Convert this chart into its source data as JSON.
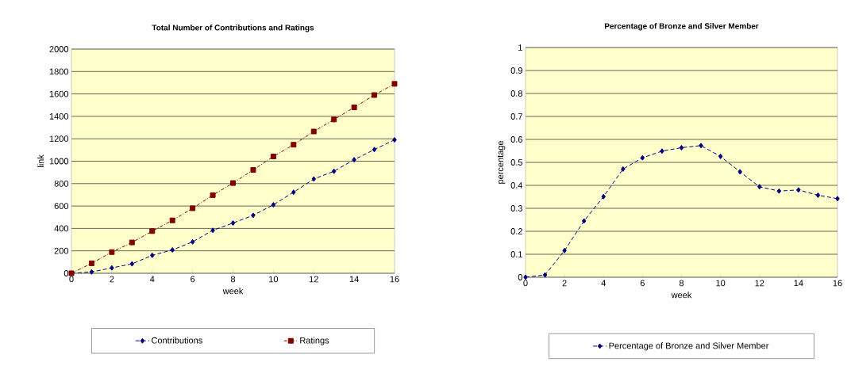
{
  "chart_data": [
    {
      "type": "line",
      "title": "Total Number of  Contributions and Ratings",
      "xlabel": "week",
      "ylabel": "link",
      "x": [
        0,
        1,
        2,
        3,
        4,
        5,
        6,
        7,
        8,
        9,
        10,
        11,
        12,
        13,
        14,
        15,
        16
      ],
      "series": [
        {
          "name": "Contributions",
          "color": "#000080",
          "marker": "diamond",
          "line_style": "dashed",
          "values": [
            0,
            12,
            48,
            84,
            160,
            208,
            280,
            383,
            448,
            517,
            611,
            723,
            841,
            910,
            1013,
            1104,
            1190
          ]
        },
        {
          "name": "Ratings",
          "color": "#800000",
          "marker": "square",
          "line_style": "dotted",
          "values": [
            0,
            89,
            189,
            275,
            376,
            472,
            580,
            697,
            805,
            922,
            1042,
            1147,
            1265,
            1372,
            1480,
            1590,
            1690
          ]
        }
      ],
      "xlim": [
        0,
        16
      ],
      "ylim": [
        0,
        2000
      ],
      "xticks": [
        0,
        2,
        4,
        6,
        8,
        10,
        12,
        14,
        16
      ],
      "yticks": [
        0,
        200,
        400,
        600,
        800,
        1000,
        1200,
        1400,
        1600,
        1800,
        2000
      ],
      "grid": "y",
      "legend": "bottom"
    },
    {
      "type": "line",
      "title": "Percentage of Bronze and Silver Member",
      "xlabel": "week",
      "ylabel": "percentage",
      "x": [
        0,
        1,
        2,
        3,
        4,
        5,
        6,
        7,
        8,
        9,
        10,
        11,
        12,
        13,
        14,
        15,
        16
      ],
      "series": [
        {
          "name": "Percentage of Bronze and Silver Member",
          "color": "#000080",
          "marker": "diamond",
          "line_style": "dashed",
          "values": [
            0,
            0.01,
            0.116,
            0.245,
            0.351,
            0.471,
            0.52,
            0.549,
            0.564,
            0.573,
            0.526,
            0.459,
            0.394,
            0.375,
            0.38,
            0.357,
            0.342
          ]
        }
      ],
      "xlim": [
        0,
        16
      ],
      "ylim": [
        0,
        1
      ],
      "xticks": [
        0,
        2,
        4,
        6,
        8,
        10,
        12,
        14,
        16
      ],
      "yticks": [
        0,
        0.1,
        0.2,
        0.3,
        0.4,
        0.5,
        0.6,
        0.7,
        0.8,
        0.9,
        1
      ],
      "grid": "y",
      "legend": "bottom"
    }
  ]
}
